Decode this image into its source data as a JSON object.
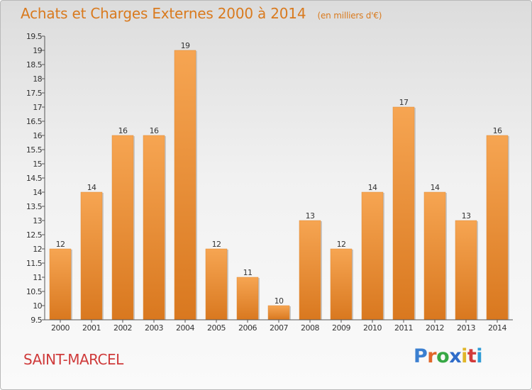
{
  "header": {
    "title": "Achats et Charges Externes 2000 à 2014",
    "subtitle": "(en milliers d'€)"
  },
  "footer": {
    "city": "SAINT-MARCEL",
    "logo_text": "Proxiti",
    "logo_letter_colors": [
      "#3b7fd0",
      "#e0672a",
      "#37a845",
      "#2f6cc9",
      "#e0b62a",
      "#d23b3b",
      "#2f9cd6"
    ]
  },
  "colors": {
    "bar_light": "#f6a552",
    "bar_dark": "#d9781f",
    "axis": "#555555",
    "grid_tick": "#555555",
    "text": "#333333"
  },
  "chart_data": {
    "type": "bar",
    "categories": [
      "2000",
      "2001",
      "2002",
      "2003",
      "2004",
      "2005",
      "2006",
      "2007",
      "2008",
      "2009",
      "2010",
      "2011",
      "2012",
      "2013",
      "2014"
    ],
    "values": [
      12,
      14,
      16,
      16,
      19,
      12,
      11,
      10,
      13,
      12,
      14,
      17,
      14,
      13,
      16
    ],
    "data_labels": [
      "12",
      "14",
      "16",
      "16",
      "19",
      "12",
      "11",
      "10",
      "13",
      "12",
      "14",
      "17",
      "14",
      "13",
      "16"
    ],
    "title": "Achats et Charges Externes 2000 à 2014",
    "subtitle": "(en milliers d'€)",
    "xlabel": "",
    "ylabel": "",
    "ylim": [
      9.5,
      19.5
    ],
    "yticks": [
      "9.5",
      "10",
      "10.5",
      "11",
      "11.5",
      "12",
      "12.5",
      "13",
      "13.5",
      "14",
      "14.5",
      "15",
      "15.5",
      "16",
      "16.5",
      "17",
      "17.5",
      "18",
      "18.5",
      "19",
      "19.5"
    ],
    "grid": false,
    "legend": "none"
  }
}
